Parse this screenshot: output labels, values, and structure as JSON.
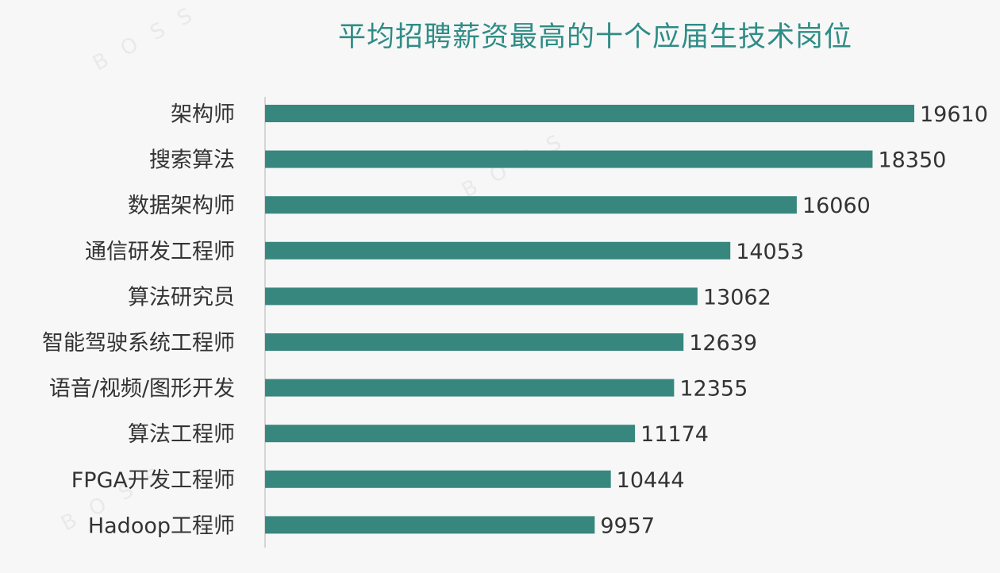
{
  "chart_data": {
    "type": "bar",
    "orientation": "horizontal",
    "title": "平均招聘薪资最高的十个应届生技术岗位",
    "categories": [
      "架构师",
      "搜索算法",
      "数据架构师",
      "通信研发工程师",
      "算法研究员",
      "智能驾驶系统工程师",
      "语音/视频/图形开发",
      "算法工程师",
      "FPGA开发工程师",
      "Hadoop工程师"
    ],
    "values": [
      19610,
      18350,
      16060,
      14053,
      13062,
      12639,
      12355,
      11174,
      10444,
      9957
    ],
    "value_labels": [
      "19610",
      "18350",
      "16060",
      "14053",
      "13062",
      "12639",
      "12355",
      "11174",
      "10444",
      "9957"
    ],
    "xlim": [
      0,
      19610
    ],
    "grid": false,
    "legend": "none",
    "colors": {
      "bar": "#37877f",
      "title": "#2f8c86",
      "text": "#333333",
      "axis": "#c8c8c8"
    }
  }
}
